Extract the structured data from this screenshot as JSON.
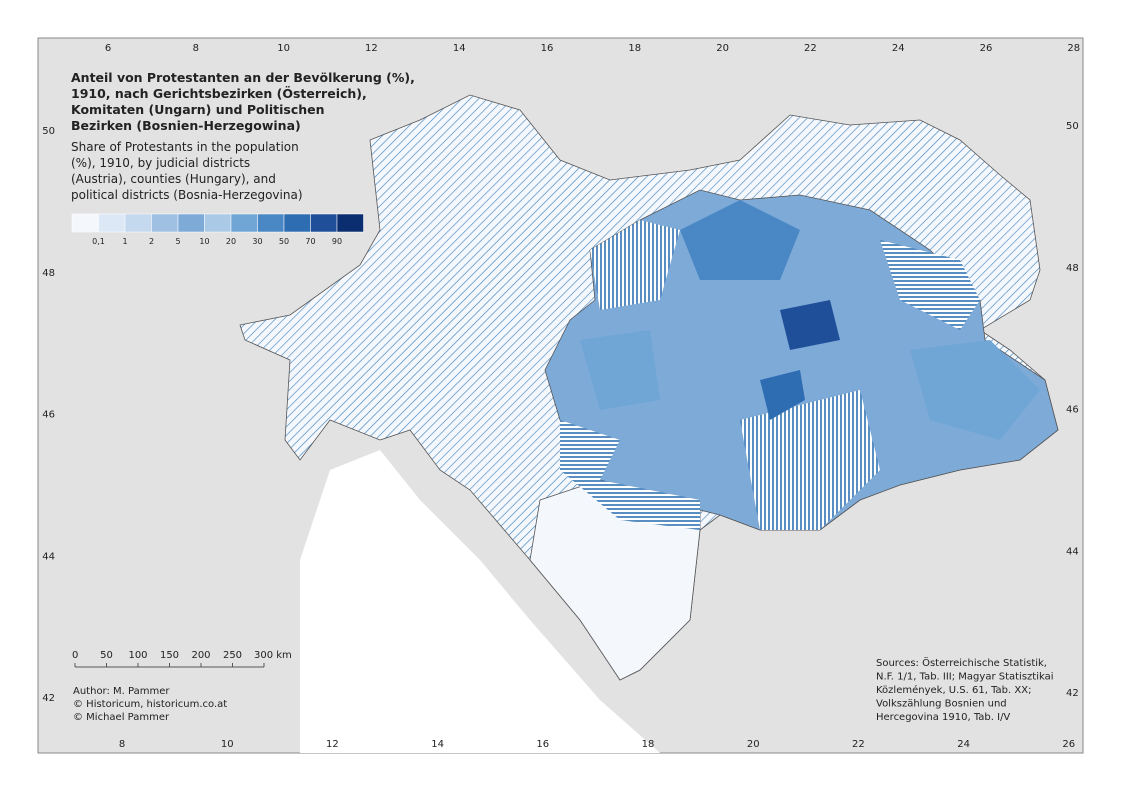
{
  "map": {
    "title": [
      "Anteil von Protestanten an der Bevölkerung (%),",
      "1910, nach Gerichtsbezirken (Österreich),",
      "Komitaten (Ungarn) und Politischen",
      "Bezirken (Bosnien-Herzegowina)"
    ],
    "subtitle": [
      "Share of Protestants in the population",
      "(%), 1910, by judicial districts",
      "(Austria), counties (Hungary), and",
      "political districts (Bosnia-Herzegovina)"
    ],
    "legend": {
      "colors": [
        "#f4f7fc",
        "#dce8f5",
        "#c4d8ee",
        "#9fc0e3",
        "#7eaad8",
        "#a9c9e6",
        "#6fa6d6",
        "#4a87c5",
        "#2f6db3",
        "#1f4f99",
        "#0b2e70"
      ],
      "breaks": [
        {
          "value": 0.1,
          "label": "0,1"
        },
        1,
        2,
        5,
        10,
        20,
        30,
        50,
        70,
        90
      ]
    },
    "top_ticks": [
      6,
      8,
      10,
      12,
      14,
      16,
      18,
      20,
      22,
      24,
      26,
      28
    ],
    "bottom_ticks": [
      8,
      10,
      12,
      14,
      16,
      18,
      20,
      22,
      24,
      26
    ],
    "left_ticks": [
      50,
      48,
      46,
      44,
      42
    ],
    "right_ticks": [
      50,
      48,
      46,
      44,
      42
    ],
    "scale_bar": [
      0,
      50,
      100,
      150,
      200,
      250,
      {
        "value": 300,
        "label": "300 km"
      }
    ],
    "author": [
      "Author: M. Pammer",
      "© Historicum, historicum.co.at",
      "© Michael Pammer"
    ],
    "sources": [
      "Sources: Österreichische Statistik,",
      "N.F. 1/1, Tab. III; Magyar Statisztikai",
      "Közlemények, U.S. 61, Tab. XX;",
      "Volkszählung Bosnien und",
      "Hercegovina 1910, Tab. I/V"
    ]
  }
}
